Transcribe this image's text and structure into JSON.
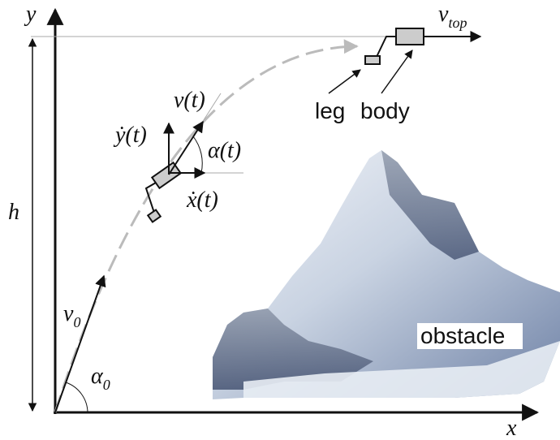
{
  "labels": {
    "y_axis": "y",
    "x_axis": "x",
    "height": "h",
    "initial_velocity": {
      "symbol": "v",
      "subscript": "0"
    },
    "launch_angle": {
      "symbol": "α",
      "subscript": "0"
    },
    "velocity": "v(t)",
    "vertical_velocity": "ẏ(t)",
    "horizontal_velocity": "ẋ(t)",
    "angle": "α(t)",
    "top_velocity": {
      "symbol": "v",
      "subscript": "top"
    },
    "leg": "leg",
    "body": "body",
    "obstacle": "obstacle"
  }
}
